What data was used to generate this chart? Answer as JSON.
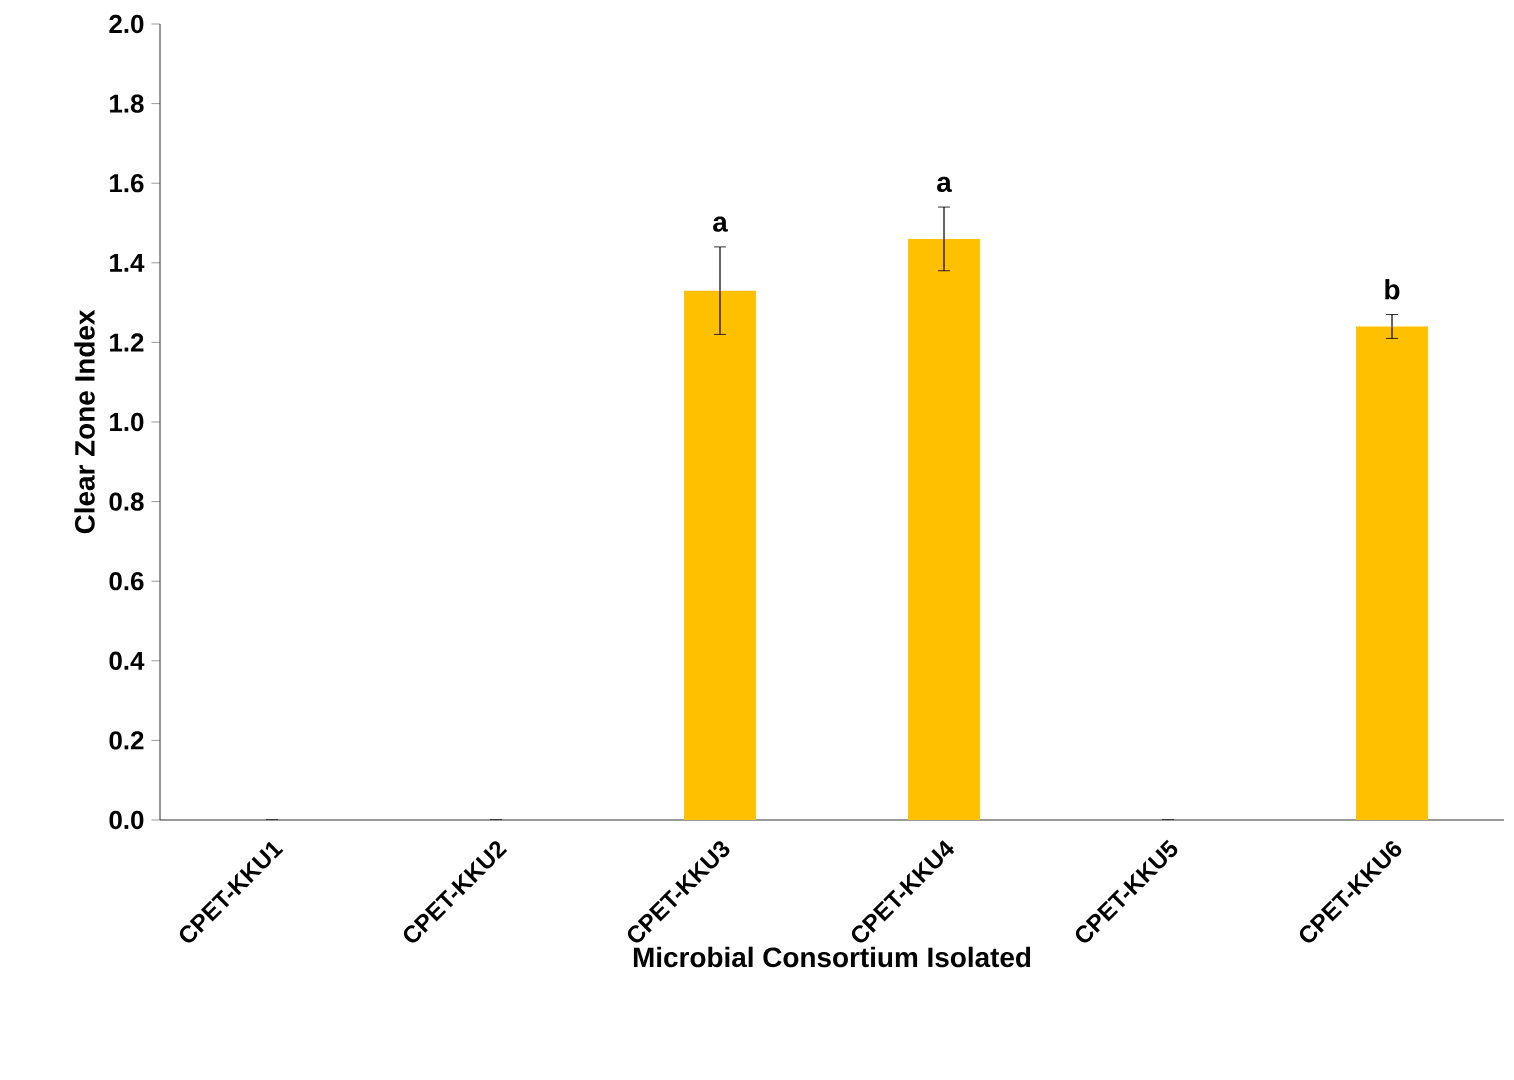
{
  "chart_data": {
    "type": "bar",
    "xlabel": "Microbial Consortium Isolated",
    "ylabel": "Clear Zone Index",
    "categories": [
      "CPET-KKU1",
      "CPET-KKU2",
      "CPET-KKU3",
      "CPET-KKU4",
      "CPET-KKU5",
      "CPET-KKU6"
    ],
    "values": [
      0,
      0,
      1.33,
      1.46,
      0,
      1.24
    ],
    "errors": [
      null,
      null,
      0.11,
      0.08,
      null,
      0.03
    ],
    "color": "#ffc000",
    "ylim": [
      0,
      2
    ],
    "yticks": [
      {
        "value": 0,
        "label": "0.0"
      },
      {
        "value": 0.2,
        "label": "0.2"
      },
      {
        "value": 0.4,
        "label": "0.4"
      },
      {
        "value": 0.6,
        "label": "0.6"
      },
      {
        "value": 0.8,
        "label": "0.8"
      },
      {
        "value": 1,
        "label": "1.0"
      },
      {
        "value": 1.2,
        "label": "1.2"
      },
      {
        "value": 1.4,
        "label": "1.4"
      },
      {
        "value": 1.6,
        "label": "1.6"
      },
      {
        "value": 1.8,
        "label": "1.8"
      },
      {
        "value": 2,
        "label": "2.0"
      }
    ],
    "annotations": [
      "a",
      "a",
      "b"
    ]
  }
}
